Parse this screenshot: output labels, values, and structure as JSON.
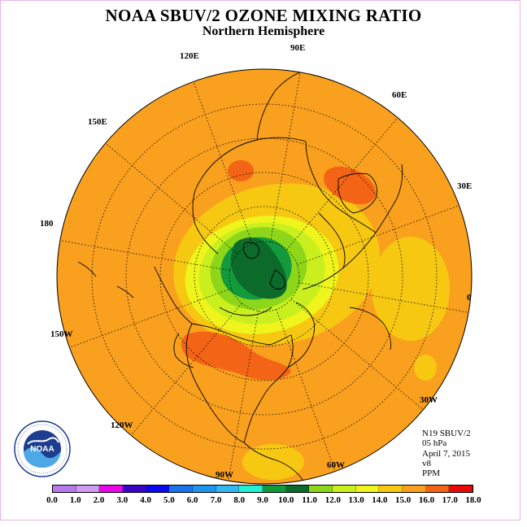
{
  "title": "NOAA SBUV/2 OZONE MIXING RATIO",
  "subtitle": "Northern Hemisphere",
  "longitude_labels": [
    "90E",
    "60E",
    "30E",
    "0",
    "30W",
    "60W",
    "90W",
    "120W",
    "150W",
    "180",
    "150E",
    "120E"
  ],
  "info": {
    "satellite": "N19 SBUV/2",
    "level": "05 hPa",
    "date": "April 7, 2015",
    "version": "v8",
    "units": "PPM"
  },
  "logo_text": "NOAA",
  "colorbar": {
    "ticks": [
      "0.0",
      "1.0",
      "2.0",
      "3.0",
      "4.0",
      "5.0",
      "6.0",
      "7.0",
      "8.0",
      "9.0",
      "10.0",
      "11.0",
      "12.0",
      "13.0",
      "14.0",
      "15.0",
      "16.0",
      "17.0",
      "18.0"
    ],
    "colors": [
      "#b57bea",
      "#d09bf2",
      "#ea08ea",
      "#3805c8",
      "#0a0af0",
      "#1a74ee",
      "#1e96f0",
      "#33b8f0",
      "#22f2d2",
      "#139a3c",
      "#0c6a2a",
      "#8ed61a",
      "#c9f01e",
      "#eef41c",
      "#f6c812",
      "#f9a01e",
      "#f36416",
      "#e90a0a",
      "#9b4a28"
    ]
  }
}
